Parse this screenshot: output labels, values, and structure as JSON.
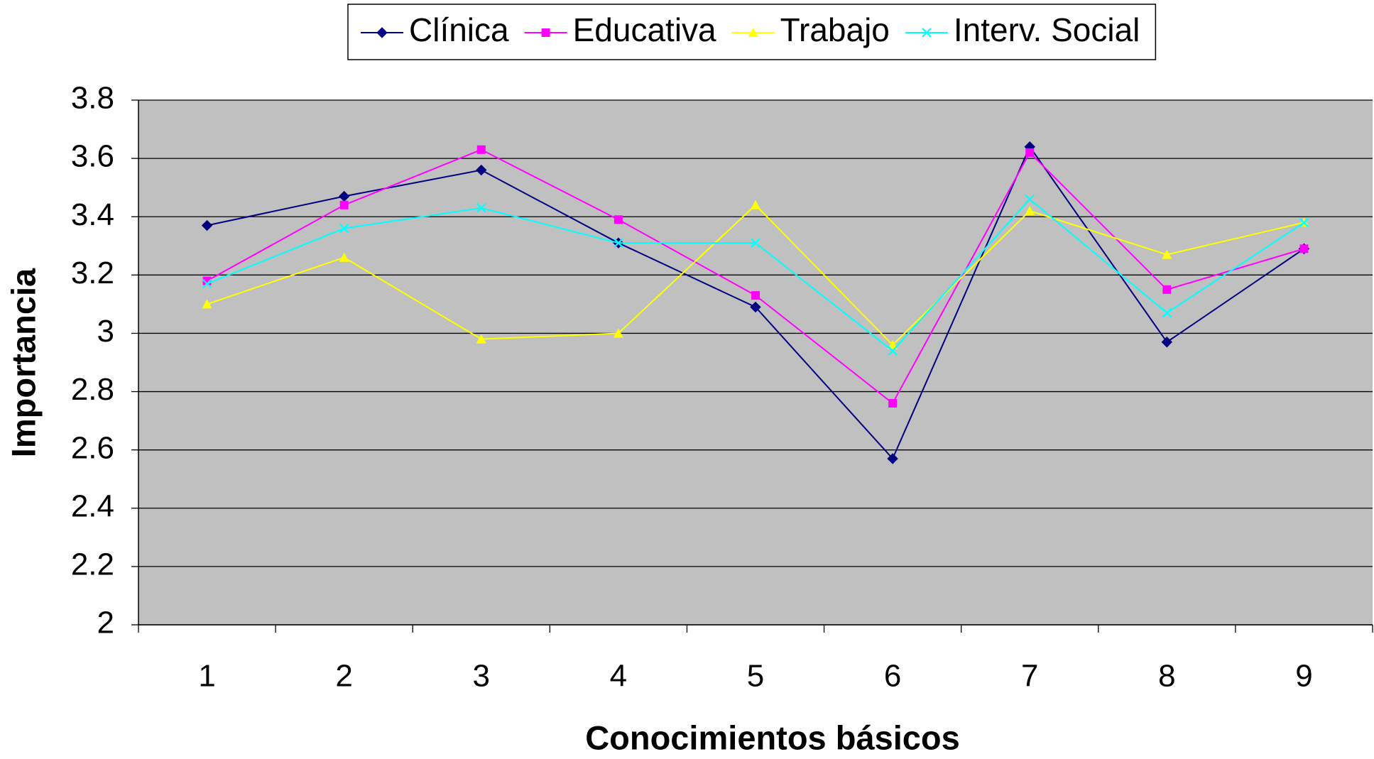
{
  "chart_data": {
    "type": "line",
    "x_label": "Conocimientos básicos",
    "y_label": "Importancia",
    "categories": [
      "1",
      "2",
      "3",
      "4",
      "5",
      "6",
      "7",
      "8",
      "9"
    ],
    "series": [
      {
        "name": "Clínica",
        "color": "#000080",
        "marker": "diamond",
        "values": [
          3.37,
          3.47,
          3.56,
          3.31,
          3.09,
          2.57,
          3.64,
          2.97,
          3.29
        ]
      },
      {
        "name": "Educativa",
        "color": "#ff00ff",
        "marker": "square",
        "values": [
          3.18,
          3.44,
          3.63,
          3.39,
          3.13,
          2.76,
          3.62,
          3.15,
          3.29
        ]
      },
      {
        "name": "Trabajo",
        "color": "#ffff00",
        "marker": "triangle",
        "values": [
          3.1,
          3.26,
          2.98,
          3.0,
          3.44,
          2.96,
          3.42,
          3.27,
          3.38
        ]
      },
      {
        "name": "Interv. Social",
        "color": "#00ffff",
        "marker": "x",
        "values": [
          3.17,
          3.36,
          3.43,
          3.31,
          3.31,
          2.94,
          3.46,
          3.07,
          3.38
        ]
      }
    ],
    "ylim": [
      2,
      3.8
    ],
    "yticks": [
      2,
      2.2,
      2.4,
      2.6,
      2.8,
      3,
      3.2,
      3.4,
      3.6,
      3.8
    ],
    "grid": true,
    "plot_background": "#c0c0c0",
    "legend": "top"
  }
}
